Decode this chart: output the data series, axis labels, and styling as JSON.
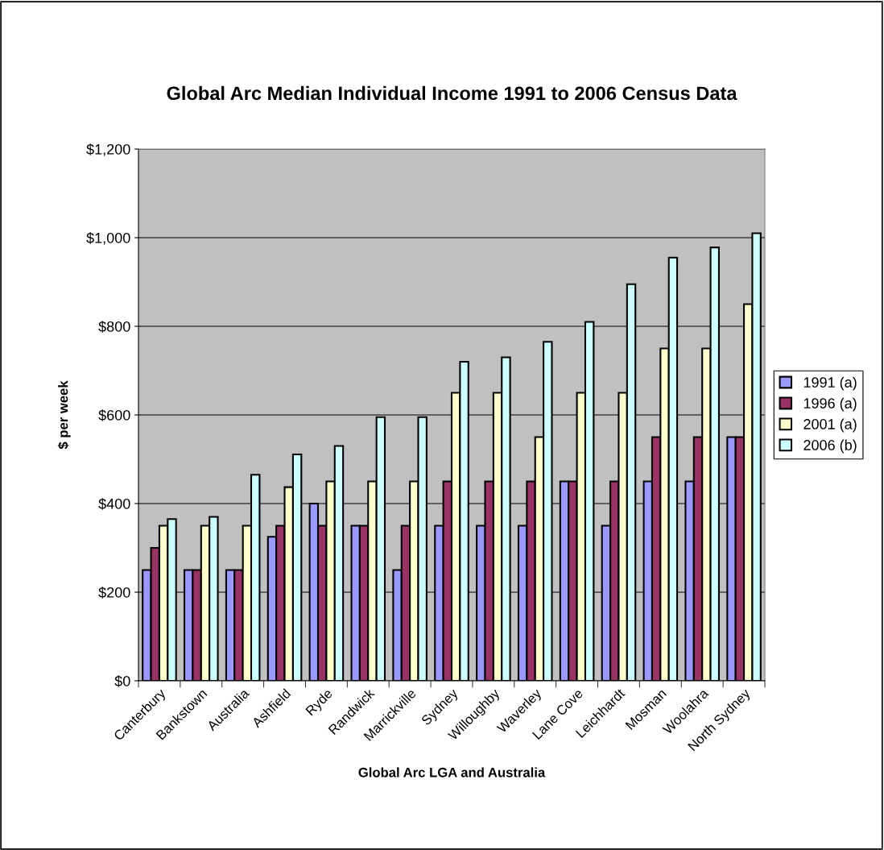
{
  "chart_data": {
    "type": "bar",
    "title": "Global Arc Median Individual Income 1991 to 2006 Census Data",
    "xlabel": "Global Arc LGA and Australia",
    "ylabel": "$ per week",
    "categories": [
      "Canterbury",
      "Bankstown",
      "Australia",
      "Ashfield",
      "Ryde",
      "Randwick",
      "Marrickville",
      "Sydney",
      "Willoughby",
      "Waverley",
      "Lane Cove",
      "Leichhardt",
      "Mosman",
      "Woolahra",
      "North Sydney"
    ],
    "series": [
      {
        "name": "1991 (a)",
        "color": "#9999ff",
        "values": [
          250,
          250,
          250,
          325,
          400,
          350,
          250,
          350,
          350,
          350,
          450,
          350,
          450,
          450,
          550
        ]
      },
      {
        "name": "1996 (a)",
        "color": "#993366",
        "values": [
          300,
          250,
          250,
          350,
          350,
          350,
          350,
          450,
          450,
          450,
          450,
          450,
          550,
          550,
          550
        ]
      },
      {
        "name": "2001 (a)",
        "color": "#ffffcc",
        "values": [
          350,
          350,
          350,
          437,
          450,
          450,
          450,
          650,
          650,
          550,
          650,
          650,
          750,
          750,
          850
        ]
      },
      {
        "name": "2006 (b)",
        "color": "#ccffff",
        "values": [
          365,
          370,
          465,
          511,
          530,
          595,
          595,
          720,
          730,
          765,
          810,
          895,
          955,
          978,
          1010
        ]
      }
    ],
    "ylim": [
      0,
      1200
    ],
    "yticks": [
      {
        "value": 0,
        "label": "$0"
      },
      {
        "value": 200,
        "label": "$200"
      },
      {
        "value": 400,
        "label": "$400"
      },
      {
        "value": 600,
        "label": "$600"
      },
      {
        "value": 800,
        "label": "$800"
      },
      {
        "value": 1000,
        "label": "$1,000"
      },
      {
        "value": 1200,
        "label": "$1,200"
      }
    ],
    "grid": "y",
    "legend": "right"
  }
}
